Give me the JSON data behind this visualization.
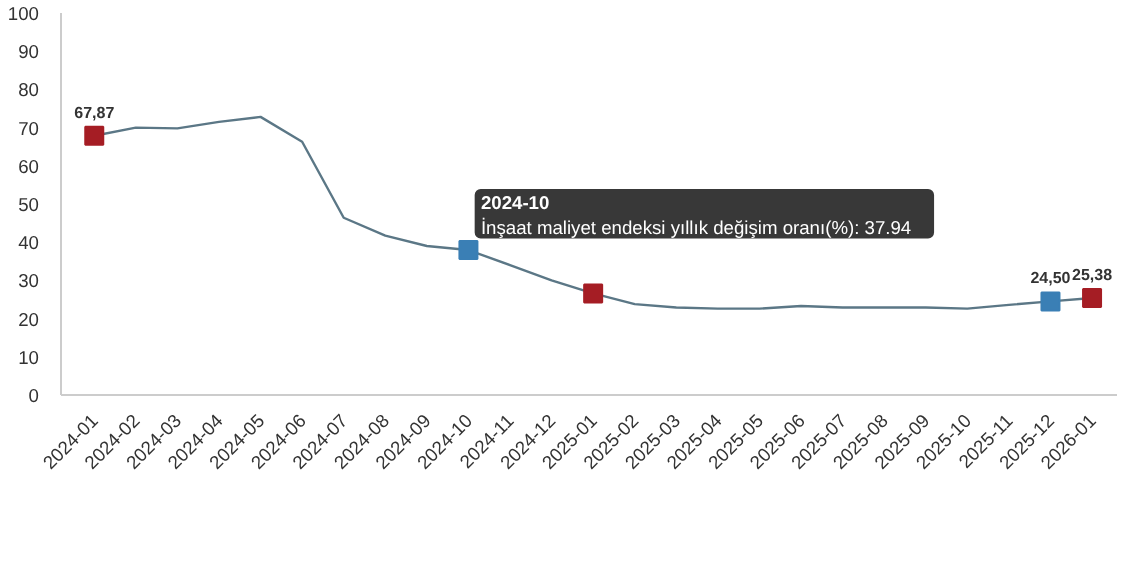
{
  "chart_data": {
    "type": "line",
    "categories": [
      "2024-01",
      "2024-02",
      "2024-03",
      "2024-04",
      "2024-05",
      "2024-06",
      "2024-07",
      "2024-08",
      "2024-09",
      "2024-10",
      "2024-11",
      "2024-12",
      "2025-01",
      "2025-02",
      "2025-03",
      "2025-04",
      "2025-05",
      "2025-06",
      "2025-07",
      "2025-08",
      "2025-09",
      "2025-10",
      "2025-11",
      "2025-12",
      "2026-01"
    ],
    "series": [
      {
        "color": "#5b7786",
        "values": [
          67.87,
          70,
          69.8,
          71.5,
          72.8,
          66.3,
          46.4,
          41.7,
          39,
          37.94,
          34,
          30,
          26.6,
          23.8,
          22.9,
          22.6,
          22.6,
          23.3,
          22.9,
          22.9,
          22.9,
          22.6,
          23.6,
          24.5,
          25.38
        ],
        "colors": [
          "#a51d24",
          null,
          null,
          null,
          null,
          null,
          null,
          null,
          null,
          "#3a7fb5",
          null,
          null,
          "#a51d24",
          null,
          null,
          null,
          null,
          null,
          null,
          null,
          null,
          null,
          null,
          "#3a7fb5",
          "#a51d24"
        ],
        "value_labels": [
          "67,87",
          null,
          null,
          null,
          null,
          null,
          null,
          null,
          null,
          null,
          null,
          null,
          null,
          null,
          null,
          null,
          null,
          null,
          null,
          null,
          null,
          null,
          null,
          "24,50",
          "25,38"
        ]
      }
    ],
    "ylim": [
      0,
      100
    ],
    "yticks": [
      0,
      10,
      20,
      30,
      40,
      50,
      60,
      70,
      80,
      90,
      100
    ],
    "grid": false,
    "annotations": [
      {
        "text": "2024-10\nİnşaat maliyet endeksi yıllık değişim oranı(%): 37.94",
        "x": "2024-10",
        "y": 37.94
      }
    ]
  }
}
